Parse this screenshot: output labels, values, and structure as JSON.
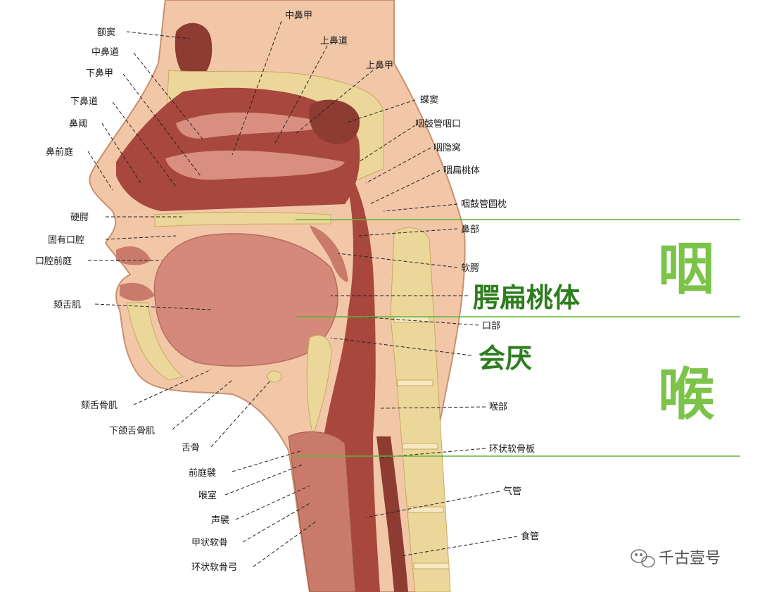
{
  "labels_left": {
    "frontal_sinus": "额窦",
    "middle_meatus": "中鼻道",
    "inferior_concha": "下鼻甲",
    "inferior_meatus": "下鼻道",
    "nasal_limen": "鼻阈",
    "nasal_vestibule": "鼻前庭",
    "hard_palate": "硬腭",
    "oral_cavity_proper": "固有口腔",
    "oral_vestibule": "口腔前庭",
    "genioglossus": "颏舌肌",
    "geniohyoid": "颏舌骨肌",
    "mylohyoid": "下颌舌骨肌",
    "hyoid": "舌骨",
    "vestibular_fold": "前庭襞",
    "laryngeal_ventricle": "喉室",
    "vocal_fold": "声襞",
    "thyroid_cartilage": "甲状软骨",
    "cricoid_arch": "环状软骨弓"
  },
  "labels_top": {
    "middle_concha": "中鼻甲",
    "superior_meatus": "上鼻道",
    "superior_concha": "上鼻甲"
  },
  "labels_right": {
    "sphenoid_sinus": "蝶窦",
    "tubal_orifice": "咽鼓管咽口",
    "pharyngeal_recess": "咽隐窝",
    "pharyngeal_tonsil": "咽扁桃体",
    "torus_tubarius": "咽鼓管圆枕",
    "nasopharynx": "鼻部",
    "soft_palate": "软腭",
    "oropharynx": "口部",
    "laryngopharynx": "喉部",
    "cricoid_lamina": "环状软骨板",
    "trachea": "气管",
    "esophagus": "食管"
  },
  "highlights": {
    "palatine_tonsil": "腭扁桃体",
    "epiglottis": "会厌"
  },
  "regions": {
    "pharynx": "咽",
    "larynx": "喉"
  },
  "watermark": {
    "text": "千古壹号",
    "icon": "wechat-icon"
  },
  "colors": {
    "region_text": "#7cc34a",
    "highlight_text": "#2e7d1f",
    "divider": "#5fb33a",
    "tissue": "#c97a6a",
    "tissue_dark": "#8e3b32",
    "bone": "#ecd79a",
    "skin": "#f1c7a8"
  }
}
